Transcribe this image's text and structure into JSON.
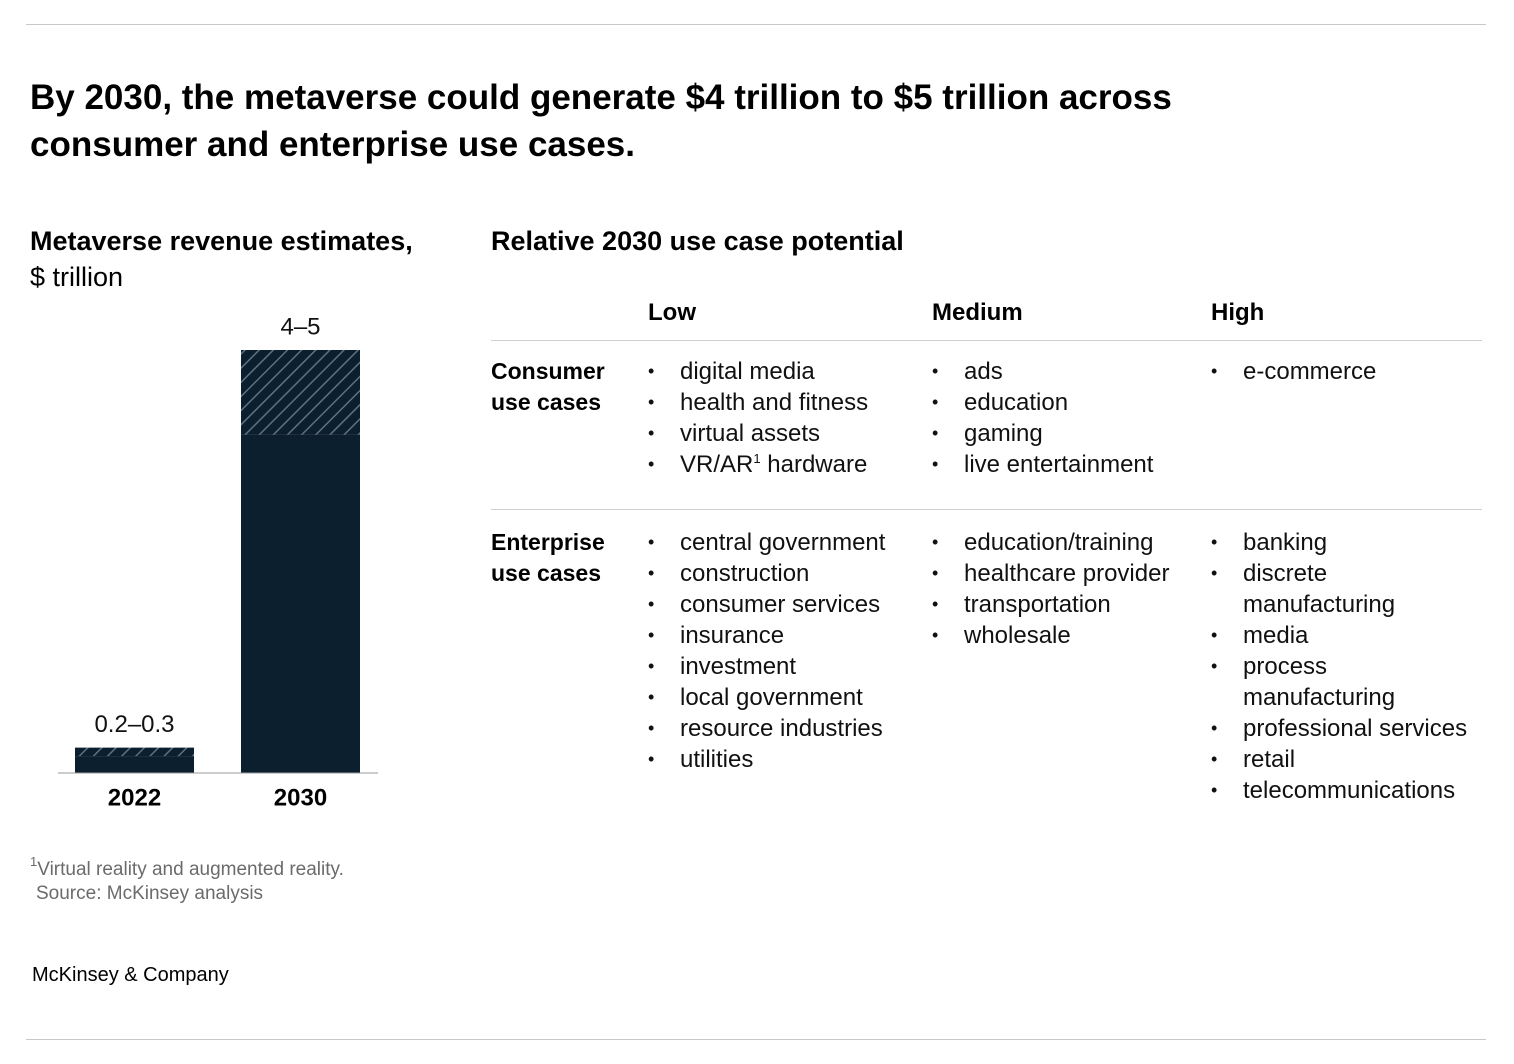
{
  "header": {
    "title": "By 2030, the metaverse could generate $4 trillion to $5 trillion across consumer and enterprise use cases."
  },
  "chart_data": {
    "type": "range_bar",
    "title": "Metaverse revenue estimates,",
    "subtitle": "$ trillion",
    "categories": [
      "2022",
      "2030"
    ],
    "low": [
      0.2,
      4
    ],
    "high": [
      0.3,
      5
    ],
    "value_labels": [
      "0.2–0.3",
      "4–5"
    ],
    "ylim": [
      0,
      5
    ],
    "color": "#0b1f2e",
    "range_color": "#5d7180"
  },
  "table": {
    "title": "Relative 2030 use case potential",
    "columns": [
      "Low",
      "Medium",
      "High"
    ],
    "rows": [
      {
        "label": "Consumer use cases",
        "cells": [
          [
            "digital media",
            "health and fitness",
            "virtual assets",
            [
              "VR/AR",
              "1",
              " hardware"
            ]
          ],
          [
            "ads",
            "education",
            "gaming",
            "live entertainment"
          ],
          [
            "e-commerce"
          ]
        ]
      },
      {
        "label": "Enterprise use cases",
        "cells": [
          [
            "central government",
            "construction",
            "consumer services",
            "insurance",
            "investment",
            "local government",
            "resource industries",
            "utilities"
          ],
          [
            "education/training",
            "healthcare provider",
            "transportation",
            "wholesale"
          ],
          [
            "banking",
            "discrete manufacturing",
            "media",
            "process manufacturing",
            "professional services",
            "retail",
            "telecommunications"
          ]
        ]
      }
    ]
  },
  "footnote": {
    "marker": "1",
    "text": "Virtual reality and augmented reality.",
    "source": "Source: McKinsey analysis"
  },
  "brand": "McKinsey & Company"
}
